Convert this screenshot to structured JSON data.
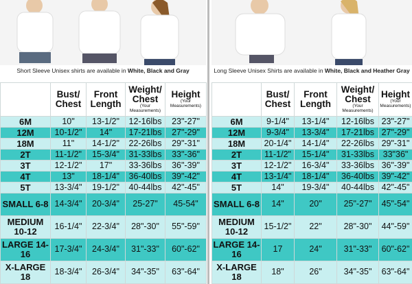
{
  "panels": [
    {
      "caption": {
        "text": "Short Sleeve Unisex shirts are available in ",
        "bold": "White, Black and Gray"
      },
      "headers": [
        {
          "label": "Bust/ Chest"
        },
        {
          "label": "Front Length"
        },
        {
          "label": "Weight/ Chest",
          "note": "(Your Measurements)"
        },
        {
          "label": "Height",
          "note": "(Your Measurements)"
        }
      ],
      "rows": [
        [
          "6M",
          "10\"",
          "13-1/2\"",
          "12-16lbs",
          "23\"-27\""
        ],
        [
          "12M",
          "10-1/2\"",
          "14\"",
          "17-21lbs",
          "27\"-29\""
        ],
        [
          "18M",
          "11\"",
          "14-1/2\"",
          "22-26lbs",
          "29\"-31\""
        ],
        [
          "2T",
          "11-1/2\"",
          "15-3/4\"",
          "31-33lbs",
          "33\"-36\""
        ],
        [
          "3T",
          "12-1/2\"",
          "17\"",
          "33-36lbs",
          "36\"-39\""
        ],
        [
          "4T",
          "13\"",
          "18-1/4\"",
          "36-40lbs",
          "39\"-42\""
        ],
        [
          "5T",
          "13-3/4\"",
          "19-1/2\"",
          "40-44lbs",
          "42\"-45\""
        ],
        [
          "SMALL 6-8",
          "14-3/4\"",
          "20-3/4\"",
          "25-27\"",
          "45-54\""
        ],
        [
          "MEDIUM 10-12",
          "16-1/4\"",
          "22-3/4\"",
          "28\"-30\"",
          "55\"-59\""
        ],
        [
          "LARGE 14-16",
          "17-3/4\"",
          "24-3/4\"",
          "31\"-33\"",
          "60\"-62\""
        ],
        [
          "X-LARGE 18",
          "18-3/4\"",
          "26-3/4\"",
          "34\"-35\"",
          "63\"-64\""
        ]
      ]
    },
    {
      "caption": {
        "text": "Long Sleeve Unisex Shirts are available in ",
        "bold": "White, Black and Heather Gray"
      },
      "headers": [
        {
          "label": "Bust/ Chest"
        },
        {
          "label": "Front Length"
        },
        {
          "label": "Weight/ Chest",
          "note": "(Your Measurements)"
        },
        {
          "label": "Height",
          "note": "(Your Measurements)"
        }
      ],
      "rows": [
        [
          "6M",
          "9-1/4\"",
          "13-1/4\"",
          "12-16lbs",
          "23\"-27\""
        ],
        [
          "12M",
          "9-3/4\"",
          "13-3/4\"",
          "17-21lbs",
          "27\"-29\""
        ],
        [
          "18M",
          "20-1/4\"",
          "14-1/4\"",
          "22-26lbs",
          "29\"-31\""
        ],
        [
          "2T",
          "11-1/2\"",
          "15-1/4\"",
          "31-33lbs",
          "33\"36\""
        ],
        [
          "3T",
          "12-1/2\"",
          "16-3/4\"",
          "33-36lbs",
          "36\"-39\""
        ],
        [
          "4T",
          "13-1/4\"",
          "18-1/4\"",
          "36-40lbs",
          "39\"-42\""
        ],
        [
          "5T",
          "14\"",
          "19-3/4\"",
          "40-44lbs",
          "42\"-45\""
        ],
        [
          "SMALL 6-8",
          "14\"",
          "20\"",
          "25\"-27\"",
          "45\"-54\""
        ],
        [
          "MEDIUM 10-12",
          "15-1/2\"",
          "22\"",
          "28\"-30\"",
          "44\"-59\""
        ],
        [
          "LARGE 14-16",
          "17",
          "24\"",
          "31\"-33\"",
          "60\"-62\""
        ],
        [
          "X-LARGE 18",
          "18\"",
          "26\"",
          "34\"-35\"",
          "63\"-64\""
        ]
      ]
    }
  ]
}
